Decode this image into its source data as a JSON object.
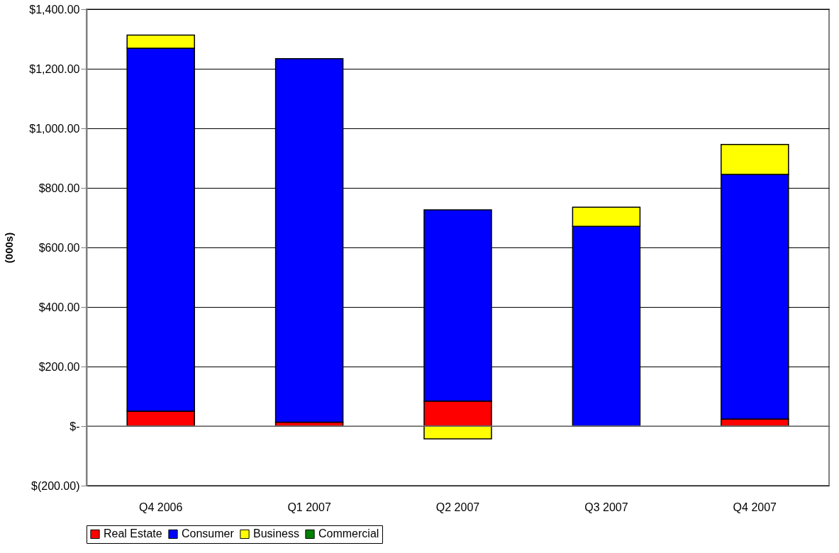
{
  "chart_data": {
    "type": "bar",
    "stacked": true,
    "ylabel": "(000s)",
    "categories": [
      "Q4 2006",
      "Q1 2007",
      "Q2 2007",
      "Q3 2007",
      "Q4 2007"
    ],
    "series": [
      {
        "name": "Real Estate",
        "color": "#ff0000",
        "values": [
          50,
          13,
          84,
          null,
          24
        ]
      },
      {
        "name": "Consumer",
        "color": "#0000ff",
        "values": [
          1219,
          1221,
          642,
          671,
          821
        ]
      },
      {
        "name": "Business",
        "color": "#ffff00",
        "values": [
          44,
          null,
          -43,
          64,
          101
        ]
      },
      {
        "name": "Commercial",
        "color": "#008000",
        "values": [
          null,
          null,
          null,
          null,
          null
        ]
      }
    ],
    "ylim": [
      -200,
      1400
    ],
    "yticks": [
      {
        "value": -200,
        "label": "$(200.00)"
      },
      {
        "value": 0,
        "label": "$-"
      },
      {
        "value": 200,
        "label": "$200.00"
      },
      {
        "value": 400,
        "label": "$400.00"
      },
      {
        "value": 600,
        "label": "$600.00"
      },
      {
        "value": 800,
        "label": "$800.00"
      },
      {
        "value": 1000,
        "label": "$1,000.00"
      },
      {
        "value": 1200,
        "label": "$1,200.00"
      },
      {
        "value": 1400,
        "label": "$1,400.00"
      }
    ],
    "grid": "y",
    "legend": "bottom"
  }
}
